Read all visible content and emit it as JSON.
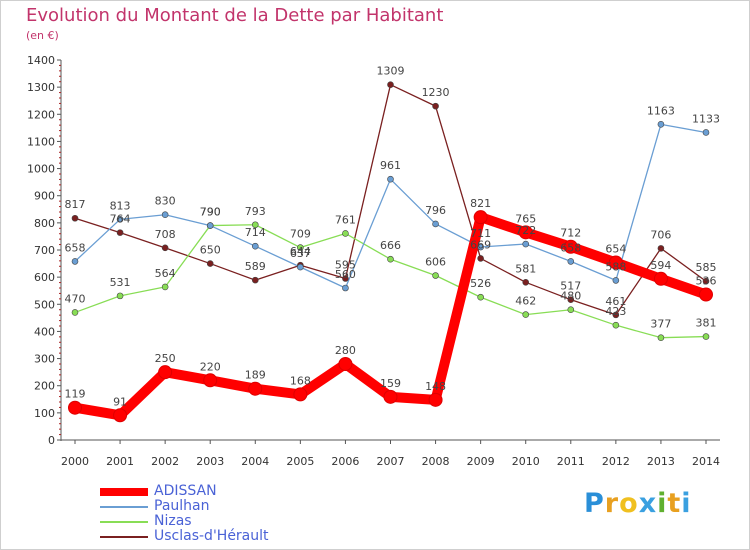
{
  "title": "Evolution du Montant de la Dette par Habitant",
  "subtitle": "(en €)",
  "logo": {
    "text": "Proxiti"
  },
  "chart_data": {
    "type": "line",
    "x": [
      "2000",
      "2001",
      "2002",
      "2003",
      "2004",
      "2005",
      "2006",
      "2007",
      "2008",
      "2009",
      "2010",
      "2011",
      "2012",
      "2013",
      "2014"
    ],
    "ylim": [
      0,
      1400
    ],
    "yticks": [
      0,
      100,
      200,
      300,
      400,
      500,
      600,
      700,
      800,
      900,
      1000,
      1100,
      1200,
      1300,
      1400
    ],
    "grid": false,
    "legend_position": "bottom-left",
    "series": [
      {
        "name": "ADISSAN",
        "color": "#ff0000",
        "values": [
          119,
          91,
          250,
          220,
          189,
          168,
          280,
          159,
          148,
          821,
          765,
          712,
          654,
          594,
          536
        ],
        "labels": [
          "119",
          "91",
          "250",
          "220",
          "189",
          "168",
          "280",
          "159",
          "148",
          "821",
          "765",
          "712",
          "654",
          "594",
          "536"
        ]
      },
      {
        "name": "Paulhan",
        "color": "#6a9ed3",
        "values": [
          658,
          813,
          830,
          790,
          714,
          637,
          560,
          961,
          796,
          711,
          722,
          658,
          588,
          1163,
          1133
        ],
        "labels": [
          "658",
          "813",
          "830",
          "790",
          "714",
          "637",
          "560",
          "961",
          "796",
          "711",
          "722",
          "658",
          "588",
          "1163",
          "1133"
        ]
      },
      {
        "name": "Nizas",
        "color": "#88dd55",
        "values": [
          470,
          531,
          564,
          790,
          793,
          709,
          761,
          666,
          606,
          526,
          462,
          480,
          423,
          377,
          381
        ],
        "labels": [
          "470",
          "531",
          "564",
          "790",
          "793",
          "709",
          "761",
          "666",
          "606",
          "526",
          "462",
          "480",
          "423",
          "377",
          "381"
        ]
      },
      {
        "name": "Usclas-d'Hérault",
        "color": "#7a2020",
        "values": [
          817,
          764,
          708,
          650,
          589,
          644,
          595,
          1309,
          1230,
          669,
          581,
          517,
          461,
          706,
          585
        ],
        "labels": [
          "817",
          "764",
          "708",
          "650",
          "589",
          "644",
          "595",
          "1309",
          "1230",
          "669",
          "581",
          "517",
          "461",
          "706",
          "585"
        ]
      }
    ]
  }
}
